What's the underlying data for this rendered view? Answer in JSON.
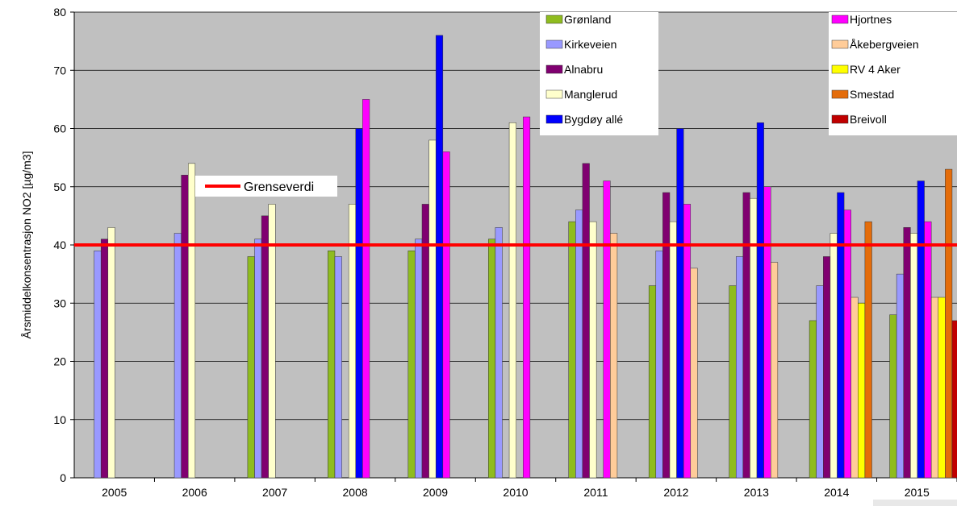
{
  "chart_data": {
    "type": "bar",
    "title": "",
    "xlabel": "",
    "ylabel": "Årsmiddelkonsentrasjon NO2 [µg/m3]",
    "ylim": [
      0,
      80
    ],
    "yticks": [
      0,
      10,
      20,
      30,
      40,
      50,
      60,
      70,
      80
    ],
    "grid": true,
    "categories": [
      "2005",
      "2006",
      "2007",
      "2008",
      "2009",
      "2010",
      "2011",
      "2012",
      "2013",
      "2014",
      "2015"
    ],
    "series": [
      {
        "name": "Grønland",
        "color": "#8fbc1f",
        "values": [
          null,
          null,
          38,
          39,
          39,
          41,
          44,
          33,
          33,
          27,
          28
        ]
      },
      {
        "name": "Kirkeveien",
        "color": "#9999ff",
        "values": [
          39,
          42,
          41,
          38,
          41,
          43,
          46,
          39,
          38,
          33,
          35
        ]
      },
      {
        "name": "Alnabru",
        "color": "#800070",
        "values": [
          41,
          52,
          45,
          null,
          47,
          null,
          54,
          49,
          49,
          38,
          43
        ]
      },
      {
        "name": "Manglerud",
        "color": "#ffffcc",
        "values": [
          43,
          54,
          47,
          47,
          58,
          61,
          44,
          44,
          48,
          42,
          42
        ]
      },
      {
        "name": "Bygdøy allé",
        "color": "#0000ff",
        "values": [
          null,
          null,
          null,
          60,
          76,
          null,
          null,
          60,
          61,
          49,
          51
        ]
      },
      {
        "name": "Hjortnes",
        "color": "#ff00ff",
        "values": [
          null,
          null,
          null,
          65,
          56,
          62,
          51,
          47,
          50,
          46,
          44
        ]
      },
      {
        "name": "Åkebergveien",
        "color": "#ffcc99",
        "values": [
          null,
          null,
          null,
          null,
          null,
          null,
          42,
          36,
          37,
          31,
          31
        ]
      },
      {
        "name": "RV 4 Aker",
        "color": "#ffff00",
        "values": [
          null,
          null,
          null,
          null,
          null,
          null,
          null,
          null,
          null,
          30,
          31
        ]
      },
      {
        "name": "Smestad",
        "color": "#e46c0a",
        "values": [
          null,
          null,
          null,
          null,
          null,
          null,
          null,
          null,
          null,
          44,
          53
        ]
      },
      {
        "name": "Breivoll",
        "color": "#c00000",
        "values": [
          null,
          null,
          null,
          null,
          null,
          null,
          null,
          null,
          null,
          null,
          27
        ]
      }
    ],
    "reference_line": {
      "name": "Grenseverdi",
      "value": 40,
      "color": "#ff0000"
    },
    "legend": [
      {
        "position": "top-center",
        "series": [
          "Grønland",
          "Kirkeveien",
          "Alnabru",
          "Manglerud",
          "Bygdøy allé"
        ]
      },
      {
        "position": "top-right",
        "series": [
          "Hjortnes",
          "Åkebergveien",
          "RV 4 Aker",
          "Smestad",
          "Breivoll"
        ]
      }
    ],
    "colors": {
      "plot_background": "#c0c0c0",
      "gridline": "#000000"
    }
  }
}
